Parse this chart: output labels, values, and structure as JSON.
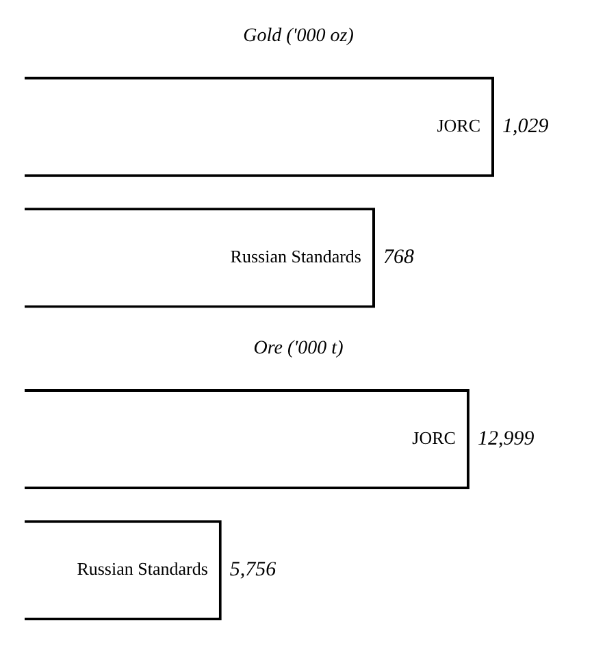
{
  "chart_data": [
    {
      "type": "bar",
      "orientation": "horizontal",
      "title": "Gold ('000 oz)",
      "categories": [
        "JORC",
        "Russian Standards"
      ],
      "values": [
        1029,
        768
      ],
      "value_labels": [
        "1,029",
        "768"
      ],
      "color": "#ffffff"
    },
    {
      "type": "bar",
      "orientation": "horizontal",
      "title": "Ore ('000 t)",
      "categories": [
        "JORC",
        "Russian Standards"
      ],
      "values": [
        12999,
        5756
      ],
      "value_labels": [
        "12,999",
        "5,756"
      ],
      "color": "#ffffff"
    }
  ]
}
